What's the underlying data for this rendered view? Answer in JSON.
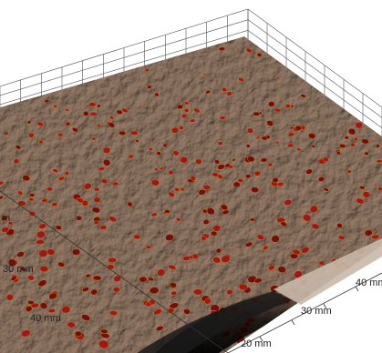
{
  "axes": {
    "left_labels": [
      "m",
      "30 mm",
      "40 mm"
    ],
    "bottom_labels": [
      "20 mm",
      "30 mm",
      "40 mm"
    ]
  },
  "colors": {
    "surface": "#b09c8c",
    "surface_light": "#cdbdb0",
    "surface_dark": "#8a776a",
    "spot": "#9a1a1a",
    "spot_dark": "#6e0f12",
    "spot_rim": "#d98a1a",
    "grid": "#555555"
  }
}
